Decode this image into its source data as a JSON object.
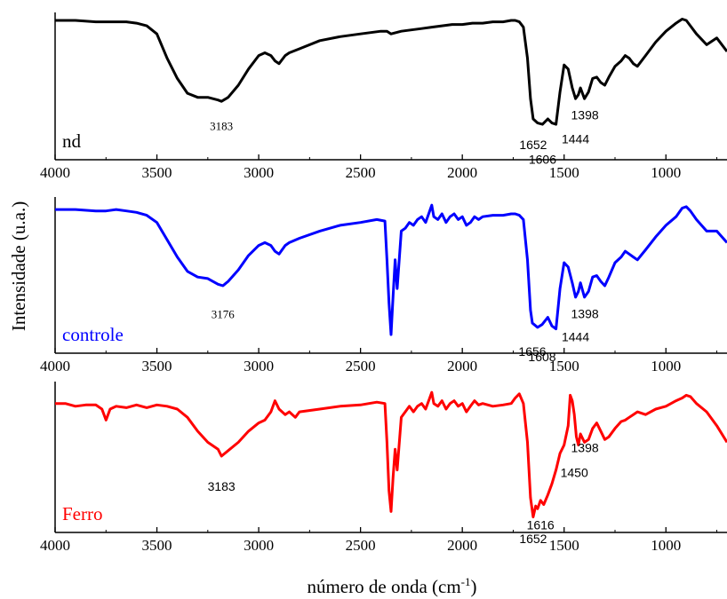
{
  "chart_data": [
    {
      "type": "line",
      "title": "",
      "xlabel": "",
      "ylabel": "",
      "xlim": [
        4000,
        700
      ],
      "x_ticks": [
        "4000",
        "3500",
        "3000",
        "2500",
        "2000",
        "1500",
        "1000"
      ],
      "series": [
        {
          "name": "nd",
          "color": "#000000",
          "x": [
            4000,
            3900,
            3800,
            3750,
            3700,
            3650,
            3600,
            3550,
            3500,
            3450,
            3400,
            3350,
            3300,
            3250,
            3200,
            3183,
            3150,
            3100,
            3050,
            3000,
            2970,
            2940,
            2920,
            2900,
            2870,
            2850,
            2800,
            2700,
            2600,
            2500,
            2400,
            2370,
            2350,
            2300,
            2250,
            2200,
            2150,
            2100,
            2050,
            2000,
            1950,
            1900,
            1850,
            1800,
            1760,
            1740,
            1720,
            1700,
            1680,
            1665,
            1652,
            1630,
            1606,
            1580,
            1560,
            1540,
            1520,
            1500,
            1480,
            1460,
            1444,
            1430,
            1420,
            1400,
            1380,
            1360,
            1340,
            1320,
            1300,
            1280,
            1250,
            1220,
            1200,
            1180,
            1160,
            1140,
            1100,
            1050,
            1000,
            950,
            920,
            900,
            880,
            850,
            800,
            750,
            700
          ],
          "y": [
            98,
            98,
            97,
            97,
            97,
            97,
            96,
            94,
            88,
            70,
            55,
            44,
            41,
            41,
            39,
            38,
            41,
            50,
            62,
            72,
            74,
            72,
            68,
            66,
            72,
            74,
            77,
            83,
            86,
            88,
            90,
            90,
            88,
            90,
            91,
            92,
            93,
            94,
            95,
            95,
            96,
            96,
            97,
            97,
            98,
            98,
            97,
            93,
            70,
            40,
            25,
            22,
            21,
            25,
            22,
            21,
            45,
            65,
            62,
            48,
            40,
            43,
            48,
            40,
            45,
            55,
            56,
            52,
            50,
            56,
            64,
            68,
            72,
            70,
            66,
            64,
            72,
            82,
            90,
            96,
            99,
            98,
            94,
            88,
            80,
            85,
            75
          ]
        },
        {
          "name": "controle",
          "color": "#0000ff",
          "x": [
            4000,
            3900,
            3800,
            3750,
            3700,
            3650,
            3600,
            3550,
            3500,
            3450,
            3400,
            3350,
            3300,
            3250,
            3200,
            3176,
            3150,
            3100,
            3050,
            3000,
            2970,
            2940,
            2920,
            2900,
            2870,
            2850,
            2800,
            2700,
            2600,
            2500,
            2420,
            2380,
            2370,
            2360,
            2350,
            2340,
            2330,
            2320,
            2300,
            2280,
            2260,
            2240,
            2220,
            2200,
            2180,
            2160,
            2150,
            2140,
            2120,
            2100,
            2080,
            2060,
            2040,
            2020,
            2000,
            1980,
            1960,
            1940,
            1920,
            1900,
            1850,
            1800,
            1760,
            1740,
            1720,
            1700,
            1680,
            1665,
            1656,
            1630,
            1608,
            1580,
            1560,
            1540,
            1520,
            1500,
            1480,
            1460,
            1444,
            1430,
            1420,
            1400,
            1380,
            1360,
            1340,
            1320,
            1300,
            1280,
            1250,
            1220,
            1200,
            1180,
            1160,
            1140,
            1100,
            1050,
            1000,
            950,
            920,
            900,
            880,
            850,
            800,
            750,
            700
          ],
          "y": [
            95,
            95,
            94,
            94,
            95,
            94,
            93,
            91,
            86,
            74,
            62,
            52,
            48,
            47,
            43,
            42,
            45,
            53,
            63,
            70,
            72,
            70,
            66,
            64,
            70,
            72,
            75,
            80,
            84,
            86,
            88,
            87,
            60,
            30,
            8,
            35,
            60,
            40,
            80,
            82,
            86,
            84,
            88,
            90,
            86,
            94,
            98,
            90,
            88,
            92,
            86,
            90,
            92,
            88,
            90,
            84,
            86,
            90,
            88,
            90,
            91,
            91,
            92,
            92,
            91,
            88,
            60,
            25,
            16,
            13,
            15,
            20,
            14,
            12,
            40,
            58,
            55,
            44,
            34,
            38,
            44,
            34,
            38,
            48,
            49,
            45,
            42,
            48,
            58,
            62,
            66,
            64,
            62,
            60,
            67,
            76,
            84,
            90,
            96,
            97,
            94,
            88,
            80,
            80,
            72
          ]
        },
        {
          "name": "Ferro",
          "color": "#ff0000",
          "x": [
            4000,
            3950,
            3900,
            3850,
            3800,
            3770,
            3750,
            3730,
            3700,
            3650,
            3600,
            3550,
            3500,
            3450,
            3400,
            3350,
            3300,
            3250,
            3200,
            3183,
            3150,
            3100,
            3050,
            3000,
            2970,
            2940,
            2920,
            2900,
            2870,
            2850,
            2820,
            2800,
            2700,
            2600,
            2500,
            2420,
            2380,
            2370,
            2360,
            2350,
            2340,
            2330,
            2320,
            2300,
            2280,
            2260,
            2240,
            2220,
            2200,
            2180,
            2160,
            2150,
            2140,
            2120,
            2100,
            2080,
            2060,
            2040,
            2020,
            2000,
            1980,
            1960,
            1940,
            1920,
            1900,
            1850,
            1800,
            1760,
            1740,
            1720,
            1700,
            1680,
            1665,
            1652,
            1640,
            1630,
            1616,
            1600,
            1580,
            1560,
            1540,
            1520,
            1500,
            1480,
            1470,
            1460,
            1450,
            1440,
            1430,
            1420,
            1400,
            1380,
            1360,
            1340,
            1320,
            1300,
            1280,
            1250,
            1220,
            1200,
            1180,
            1160,
            1140,
            1100,
            1050,
            1000,
            950,
            920,
            900,
            880,
            850,
            800,
            750,
            700
          ],
          "y": [
            88,
            88,
            86,
            87,
            87,
            84,
            76,
            84,
            86,
            85,
            87,
            85,
            87,
            86,
            84,
            78,
            68,
            60,
            55,
            50,
            54,
            60,
            68,
            74,
            76,
            82,
            90,
            84,
            80,
            82,
            78,
            82,
            84,
            86,
            87,
            89,
            88,
            60,
            25,
            10,
            35,
            55,
            40,
            78,
            82,
            86,
            82,
            86,
            88,
            84,
            92,
            96,
            88,
            86,
            90,
            84,
            88,
            90,
            86,
            88,
            82,
            86,
            90,
            87,
            88,
            86,
            87,
            88,
            92,
            95,
            88,
            60,
            20,
            6,
            14,
            12,
            18,
            15,
            22,
            30,
            40,
            52,
            58,
            72,
            94,
            90,
            80,
            64,
            58,
            66,
            60,
            62,
            70,
            74,
            68,
            62,
            64,
            70,
            75,
            76,
            78,
            80,
            82,
            80,
            84,
            86,
            90,
            92,
            94,
            93,
            88,
            82,
            72,
            60
          ]
        }
      ],
      "annotations": [
        {
          "panel": 0,
          "text": "3183",
          "x": 3183,
          "y": 26
        },
        {
          "panel": 0,
          "text": "1652",
          "x": 1652,
          "y": 12
        },
        {
          "panel": 0,
          "text": "1606",
          "x": 1606,
          "y": 1
        },
        {
          "panel": 0,
          "text": "1444",
          "x": 1444,
          "y": 16
        },
        {
          "panel": 0,
          "text": "1398",
          "x": 1398,
          "y": 34
        },
        {
          "panel": 1,
          "text": "3176",
          "x": 3176,
          "y": 28
        },
        {
          "panel": 1,
          "text": "1656",
          "x": 1656,
          "y": 2
        },
        {
          "panel": 1,
          "text": "1608",
          "x": 1608,
          "y": -2
        },
        {
          "panel": 1,
          "text": "1444",
          "x": 1444,
          "y": 12
        },
        {
          "panel": 1,
          "text": "1398",
          "x": 1398,
          "y": 28
        },
        {
          "panel": 2,
          "text": "3183",
          "x": 3183,
          "y": 34
        },
        {
          "panel": 2,
          "text": "1450",
          "x": 1450,
          "y": 44
        },
        {
          "panel": 2,
          "text": "1398",
          "x": 1398,
          "y": 62
        },
        {
          "panel": 2,
          "text": "1616",
          "x": 1616,
          "y": 6
        },
        {
          "panel": 2,
          "text": "1652",
          "x": 1652,
          "y": -4
        }
      ],
      "ylabel_shared": "Intensidade (u.a.)",
      "xlabel_shared": "número de onda (cm",
      "xlabel_superscript": "-1",
      "xlabel_close": ")",
      "grid": false
    }
  ]
}
